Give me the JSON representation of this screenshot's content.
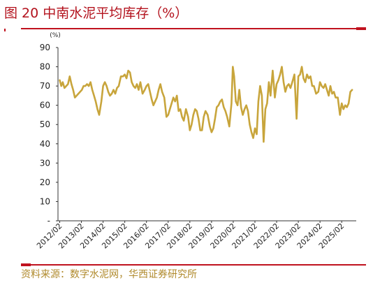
{
  "title": "图 20 中南水泥平均库存（%）",
  "source": "资料来源：数字水泥网，华西证券研究所",
  "colors": {
    "line": "#c8a53c",
    "accent": "#c0121e",
    "title": "#b3121d",
    "source": "#b08a2c"
  },
  "chart_data": {
    "type": "line",
    "unit": "(%)",
    "ylim": [
      0,
      90
    ],
    "yticks": [
      "-",
      "10",
      "20",
      "30",
      "40",
      "50",
      "60",
      "70",
      "80",
      "90"
    ],
    "xlim": [
      2012.0,
      2025.75
    ],
    "xtick_labels": [
      "2012/02",
      "2013/02",
      "2014/02",
      "2015/02",
      "2016/02",
      "2017/02",
      "2018/02",
      "2019/02",
      "2020/02",
      "2021/02",
      "2022/02",
      "2023/02",
      "2024/02",
      "2025/02"
    ],
    "grid": false,
    "legend": "none",
    "x": [
      2012.08,
      2012.15,
      2012.22,
      2012.3,
      2012.38,
      2012.46,
      2012.54,
      2012.62,
      2012.7,
      2012.78,
      2012.86,
      2012.94,
      2013.02,
      2013.1,
      2013.18,
      2013.26,
      2013.34,
      2013.42,
      2013.5,
      2013.58,
      2013.66,
      2013.74,
      2013.82,
      2013.9,
      2014.0,
      2014.08,
      2014.16,
      2014.24,
      2014.32,
      2014.4,
      2014.48,
      2014.56,
      2014.64,
      2014.72,
      2014.8,
      2014.9,
      2015.0,
      2015.08,
      2015.16,
      2015.24,
      2015.32,
      2015.4,
      2015.48,
      2015.56,
      2015.64,
      2015.72,
      2015.8,
      2015.9,
      2016.0,
      2016.08,
      2016.16,
      2016.24,
      2016.32,
      2016.4,
      2016.48,
      2016.56,
      2016.64,
      2016.72,
      2016.8,
      2016.9,
      2017.0,
      2017.08,
      2017.16,
      2017.24,
      2017.32,
      2017.4,
      2017.48,
      2017.56,
      2017.64,
      2017.72,
      2017.8,
      2017.9,
      2018.0,
      2018.08,
      2018.16,
      2018.24,
      2018.32,
      2018.4,
      2018.48,
      2018.56,
      2018.64,
      2018.72,
      2018.8,
      2018.9,
      2019.0,
      2019.08,
      2019.16,
      2019.24,
      2019.32,
      2019.4,
      2019.48,
      2019.56,
      2019.64,
      2019.72,
      2019.8,
      2019.9,
      2020.0,
      2020.06,
      2020.12,
      2020.2,
      2020.28,
      2020.36,
      2020.44,
      2020.52,
      2020.6,
      2020.68,
      2020.76,
      2020.84,
      2020.92,
      2021.0,
      2021.08,
      2021.16,
      2021.24,
      2021.32,
      2021.4,
      2021.48,
      2021.56,
      2021.64,
      2021.72,
      2021.8,
      2021.9,
      2022.0,
      2022.08,
      2022.16,
      2022.24,
      2022.32,
      2022.4,
      2022.48,
      2022.56,
      2022.64,
      2022.72,
      2022.8,
      2022.9,
      2023.0,
      2023.08,
      2023.16,
      2023.24,
      2023.32,
      2023.4,
      2023.48,
      2023.56,
      2023.64,
      2023.72,
      2023.8,
      2023.9,
      2024.0,
      2024.08,
      2024.16,
      2024.24,
      2024.32,
      2024.4,
      2024.48,
      2024.56,
      2024.64,
      2024.72,
      2024.8,
      2024.9,
      2025.0,
      2025.08,
      2025.16,
      2025.24,
      2025.32,
      2025.4,
      2025.48,
      2025.56
    ],
    "y": [
      73,
      70,
      72,
      69,
      70,
      71,
      75,
      71,
      68,
      64,
      65,
      66,
      67,
      68,
      70,
      70,
      71,
      70,
      72,
      68,
      65,
      62,
      58,
      55,
      62,
      70,
      72,
      70,
      67,
      65,
      66,
      68,
      66,
      69,
      70,
      75,
      75,
      76,
      74,
      78,
      77,
      72,
      70,
      69,
      71,
      68,
      72,
      66,
      68,
      70,
      71,
      67,
      63,
      60,
      62,
      64,
      68,
      71,
      67,
      64,
      54,
      55,
      58,
      61,
      64,
      62,
      65,
      57,
      58,
      54,
      52,
      58,
      54,
      47,
      50,
      55,
      58,
      57,
      53,
      47,
      47,
      54,
      57,
      55,
      49,
      46,
      48,
      53,
      59,
      60,
      62,
      63,
      59,
      57,
      54,
      49,
      61,
      80,
      75,
      62,
      60,
      68,
      59,
      55,
      58,
      60,
      57,
      50,
      46,
      43,
      48,
      45,
      62,
      70,
      65,
      41,
      58,
      61,
      72,
      65,
      78,
      64,
      71,
      73,
      76,
      80,
      72,
      67,
      70,
      71,
      69,
      72,
      76,
      53,
      75,
      76,
      80,
      74,
      72,
      76,
      74,
      75,
      70,
      70,
      66,
      67,
      72,
      70,
      69,
      71,
      68,
      65,
      70,
      66,
      67,
      64,
      64,
      55,
      61,
      58,
      60,
      59,
      61,
      67,
      68
    ]
  }
}
